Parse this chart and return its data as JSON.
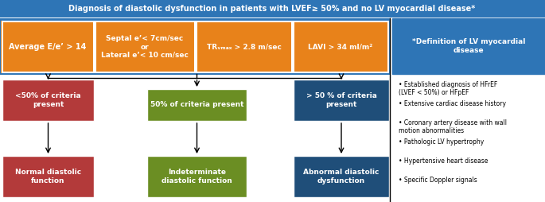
{
  "title": "Diagnosis of diastolic dysfunction in patients with LVEF≥ 50% and no LV myocardial disease*",
  "orange_color": "#E8821A",
  "red_color": "#B33A3A",
  "green_color": "#6B8E23",
  "dark_blue_color": "#1F4E79",
  "mid_blue_color": "#2E75B6",
  "sidebar_title": "*Definition of LV myocardial\ndisease",
  "sidebar_items": [
    "Established diagnosis of HFrEF\n(LVEF < 50%) or HFpEF",
    "Extensive cardiac disease history",
    "Coronary artery disease with wall\nmotion abnormalities",
    "Pathologic LV hypertrophy",
    "Hypertensive heart disease",
    "Specific Doppler signals"
  ],
  "crit_labels": [
    "Average E/e’ > 14",
    "Septal e’< 7cm/sec\nor\nLateral e’< 10 cm/sec",
    "TRᵥₘₐₓ > 2.8 m/sec",
    "LAVI > 34 ml/m²"
  ]
}
